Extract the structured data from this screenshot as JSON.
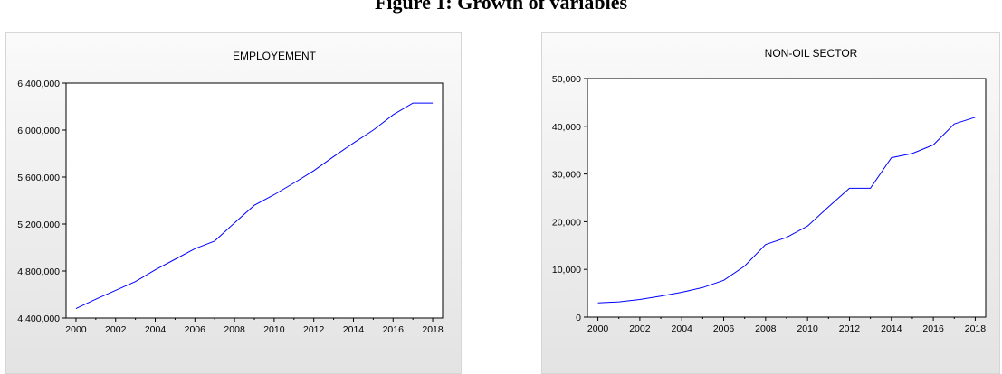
{
  "figure_title": "Figure 1: Growth of variables",
  "chart_data": [
    {
      "type": "line",
      "title": "EMPLOYEMENT",
      "xlabel": "",
      "ylabel": "",
      "x": [
        2000,
        2001,
        2002,
        2003,
        2004,
        2005,
        2006,
        2007,
        2008,
        2009,
        2010,
        2011,
        2012,
        2013,
        2014,
        2015,
        2016,
        2017,
        2018
      ],
      "series": [
        {
          "values": [
            4480000,
            4560000,
            4635000,
            4710000,
            4810000,
            4900000,
            4990000,
            5055000,
            5210000,
            5360000,
            5450000,
            5550000,
            5655000,
            5775000,
            5890000,
            6000000,
            6130000,
            6230000,
            6230000
          ]
        }
      ],
      "xlim": [
        1999.5,
        2018.5
      ],
      "ylim": [
        4400000,
        6400000
      ],
      "yticks": [
        4400000,
        4800000,
        5200000,
        5600000,
        6000000,
        6400000
      ],
      "ytick_labels": [
        "4,400,000",
        "4,800,000",
        "5,200,000",
        "5,600,000",
        "6,000,000",
        "6,400,000"
      ],
      "xticks": [
        2000,
        2002,
        2004,
        2006,
        2008,
        2010,
        2012,
        2014,
        2016,
        2018
      ],
      "xtick_labels": [
        "2000",
        "2002",
        "2004",
        "2006",
        "2008",
        "2010",
        "2012",
        "2014",
        "2016",
        "2018"
      ],
      "line_color": "#0000ff",
      "grid": false
    },
    {
      "type": "line",
      "title": "NON-OIL SECTOR",
      "xlabel": "",
      "ylabel": "",
      "x": [
        2000,
        2001,
        2002,
        2003,
        2004,
        2005,
        2006,
        2007,
        2008,
        2009,
        2010,
        2011,
        2012,
        2013,
        2014,
        2015,
        2016,
        2017,
        2018
      ],
      "series": [
        {
          "values": [
            3000,
            3200,
            3700,
            4400,
            5200,
            6200,
            7700,
            10700,
            15200,
            16700,
            19100,
            23100,
            27000,
            27000,
            33400,
            34300,
            36100,
            40500,
            41900
          ]
        }
      ],
      "xlim": [
        1999.5,
        2018.5
      ],
      "ylim": [
        0,
        50000
      ],
      "yticks": [
        0,
        10000,
        20000,
        30000,
        40000,
        50000
      ],
      "ytick_labels": [
        "0",
        "10,000",
        "20,000",
        "30,000",
        "40,000",
        "50,000"
      ],
      "xticks": [
        2000,
        2002,
        2004,
        2006,
        2008,
        2010,
        2012,
        2014,
        2016,
        2018
      ],
      "xtick_labels": [
        "2000",
        "2002",
        "2004",
        "2006",
        "2008",
        "2010",
        "2012",
        "2014",
        "2016",
        "2018"
      ],
      "line_color": "#0000ff",
      "grid": false
    }
  ]
}
